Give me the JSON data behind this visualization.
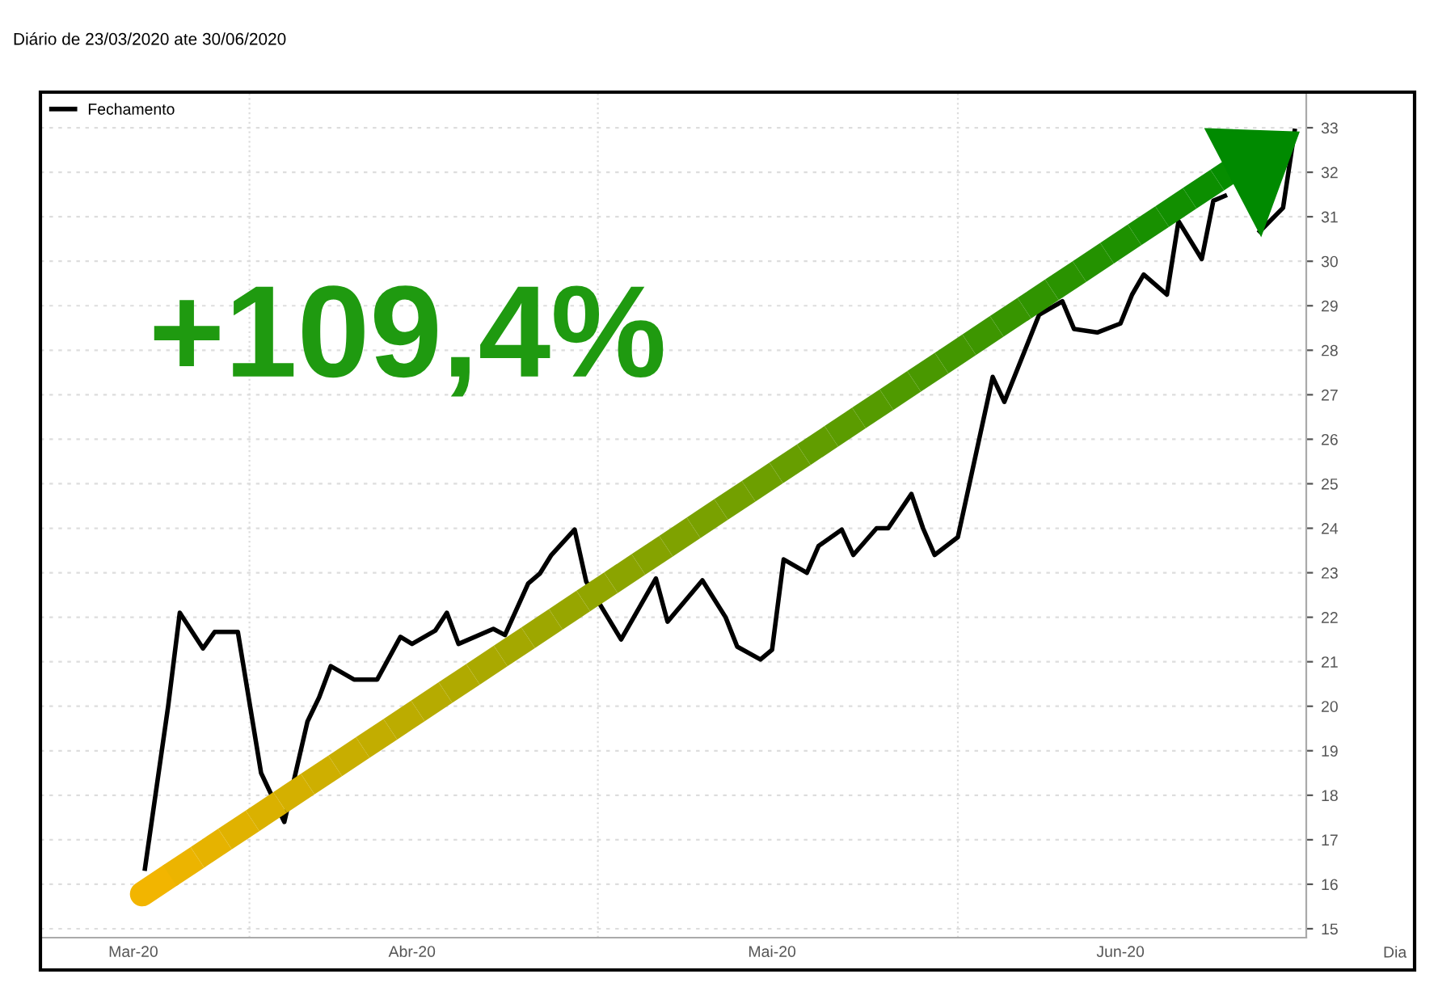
{
  "chart_data": {
    "type": "line",
    "title": "Diário de 23/03/2020 ate 30/06/2020",
    "xlabel": "Dia",
    "annotations": [
      "+109,4%"
    ],
    "x": [
      "2020-03-23",
      "2020-03-25",
      "2020-03-26",
      "2020-03-28",
      "2020-03-29",
      "2020-03-31",
      "2020-04-02",
      "2020-04-04",
      "2020-04-06",
      "2020-04-07",
      "2020-04-08",
      "2020-04-10",
      "2020-04-12",
      "2020-04-14",
      "2020-04-15",
      "2020-04-17",
      "2020-04-18",
      "2020-04-19",
      "2020-04-22",
      "2020-04-23",
      "2020-04-25",
      "2020-04-26",
      "2020-04-27",
      "2020-04-29",
      "2020-04-30",
      "2020-05-03",
      "2020-05-06",
      "2020-05-07",
      "2020-05-10",
      "2020-05-12",
      "2020-05-13",
      "2020-05-15",
      "2020-05-16",
      "2020-05-17",
      "2020-05-19",
      "2020-05-20",
      "2020-05-22",
      "2020-05-23",
      "2020-05-25",
      "2020-05-26",
      "2020-05-28",
      "2020-05-29",
      "2020-05-30",
      "2020-06-01",
      "2020-06-04",
      "2020-06-05",
      "2020-06-08",
      "2020-06-10",
      "2020-06-11",
      "2020-06-13",
      "2020-06-15",
      "2020-06-16",
      "2020-06-17",
      "2020-06-19",
      "2020-06-20",
      "2020-06-22",
      "2020-06-23",
      "2020-06-24",
      "2020-06-26",
      "2020-06-27",
      "2020-06-29",
      "2020-06-30"
    ],
    "series": [
      {
        "name": "Fechamento",
        "color": "#000000",
        "values": [
          16.35,
          20.0,
          22.1,
          21.3,
          21.67,
          21.67,
          18.5,
          17.4,
          19.66,
          20.2,
          20.9,
          20.6,
          20.6,
          21.56,
          21.4,
          21.7,
          22.1,
          21.4,
          21.74,
          21.6,
          22.76,
          22.98,
          23.4,
          23.97,
          22.8,
          21.5,
          22.87,
          21.9,
          22.83,
          22.0,
          21.34,
          21.05,
          21.27,
          23.3,
          23.0,
          23.6,
          23.97,
          23.4,
          24.0,
          24.0,
          24.77,
          24.0,
          23.4,
          23.8,
          27.4,
          26.84,
          28.8,
          29.1,
          28.48,
          28.4,
          28.6,
          29.25,
          29.7,
          29.25,
          30.9,
          30.05,
          31.36,
          31.47,
          null,
          30.67,
          31.2,
          32.93
        ]
      }
    ],
    "xlim": [
      "2020-03-14",
      "2020-07-01"
    ],
    "xticks": [
      {
        "value": "2020-03-22",
        "label": "Mar-20"
      },
      {
        "value": "2020-04-15",
        "label": "Abr-20"
      },
      {
        "value": "2020-05-16",
        "label": "Mai-20"
      },
      {
        "value": "2020-06-15",
        "label": "Jun-20"
      }
    ],
    "ylim": [
      14.8,
      33.8
    ],
    "yticks": [
      15,
      16,
      17,
      18,
      19,
      20,
      21,
      22,
      23,
      24,
      25,
      26,
      27,
      28,
      29,
      30,
      31,
      32,
      33
    ],
    "ref_lines": [
      {
        "axis": "x",
        "value": "2020-04-01",
        "label": null,
        "color": "#dddddd",
        "line_style": "dotted"
      },
      {
        "axis": "x",
        "value": "2020-05-01",
        "label": null,
        "color": "#dddddd",
        "line_style": "dotted"
      },
      {
        "axis": "x",
        "value": "2020-06-01",
        "label": null,
        "color": "#dddddd",
        "line_style": "dotted"
      }
    ],
    "grid": "y",
    "legend": "top left",
    "marker": "none",
    "line_style": "solid"
  }
}
